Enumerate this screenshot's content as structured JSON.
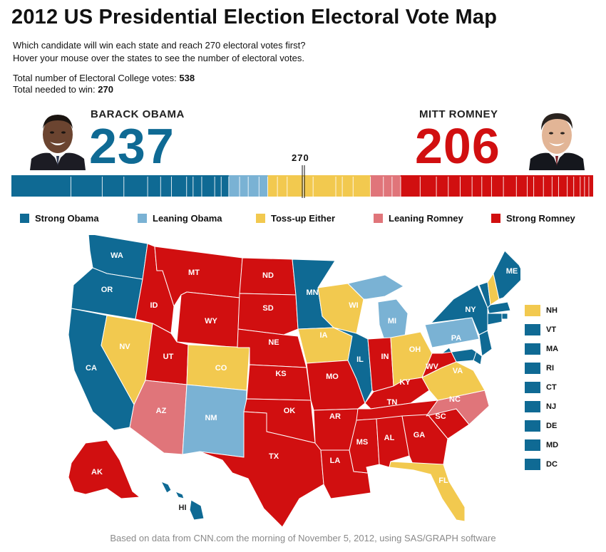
{
  "title": "2012 US Presidential Election Electoral Vote Map",
  "subtitle_lines": [
    "Which candidate will win each state and reach 270 electoral votes first?",
    "Hover your mouse over the states to see the number of electoral votes."
  ],
  "totals": {
    "total_label": "Total number of Electoral College votes: ",
    "total_value": "538",
    "needed_label": "Total needed to win: ",
    "needed_value": "270"
  },
  "candidates": {
    "obama": {
      "name": "BARACK OBAMA",
      "votes": "237",
      "color": "#0f6a94"
    },
    "romney": {
      "name": "MITT ROMNEY",
      "votes": "206",
      "color": "#d10f10"
    }
  },
  "threshold_label": "270",
  "colors": {
    "strong_obama": "#0f6a94",
    "leaning_obama": "#7ab2d4",
    "tossup": "#f2c94f",
    "leaning_romney": "#e0757a",
    "strong_romney": "#d10f10"
  },
  "bar_totals": {
    "strong_obama": 201,
    "leaning_obama": 36,
    "tossup": 95,
    "leaning_romney": 28,
    "strong_romney": 178
  },
  "legend": [
    {
      "label": "Strong Obama",
      "key": "strong_obama"
    },
    {
      "label": "Leaning Obama",
      "key": "leaning_obama"
    },
    {
      "label": "Toss-up Either",
      "key": "tossup"
    },
    {
      "label": "Leaning Romney",
      "key": "leaning_romney"
    },
    {
      "label": "Strong Romney",
      "key": "strong_romney"
    }
  ],
  "states": {
    "WA": "strong_obama",
    "OR": "strong_obama",
    "CA": "strong_obama",
    "NV": "tossup",
    "ID": "strong_romney",
    "MT": "strong_romney",
    "WY": "strong_romney",
    "UT": "strong_romney",
    "AZ": "leaning_romney",
    "CO": "tossup",
    "NM": "leaning_obama",
    "ND": "strong_romney",
    "SD": "strong_romney",
    "NE": "strong_romney",
    "KS": "strong_romney",
    "OK": "strong_romney",
    "TX": "strong_romney",
    "MN": "strong_obama",
    "IA": "tossup",
    "MO": "strong_romney",
    "AR": "strong_romney",
    "LA": "strong_romney",
    "WI": "tossup",
    "IL": "strong_obama",
    "MI": "leaning_obama",
    "IN": "strong_romney",
    "OH": "tossup",
    "KY": "strong_romney",
    "TN": "strong_romney",
    "MS": "strong_romney",
    "AL": "strong_romney",
    "GA": "strong_romney",
    "FL": "tossup",
    "SC": "strong_romney",
    "NC": "leaning_romney",
    "VA": "tossup",
    "WV": "strong_romney",
    "PA": "leaning_obama",
    "NY": "strong_obama",
    "ME": "strong_obama",
    "AK": "strong_romney",
    "HI": "strong_obama",
    "NH": "tossup",
    "VT": "strong_obama",
    "MA": "strong_obama",
    "RI": "strong_obama",
    "CT": "strong_obama",
    "NJ": "strong_obama",
    "DE": "strong_obama",
    "MD": "strong_obama",
    "DC": "strong_obama"
  },
  "small_states": [
    {
      "abbr": "NH",
      "key": "tossup"
    },
    {
      "abbr": "VT",
      "key": "strong_obama"
    },
    {
      "abbr": "MA",
      "key": "strong_obama"
    },
    {
      "abbr": "RI",
      "key": "strong_obama"
    },
    {
      "abbr": "CT",
      "key": "strong_obama"
    },
    {
      "abbr": "NJ",
      "key": "strong_obama"
    },
    {
      "abbr": "DE",
      "key": "strong_obama"
    },
    {
      "abbr": "MD",
      "key": "strong_obama"
    },
    {
      "abbr": "DC",
      "key": "strong_obama"
    }
  ],
  "footer": "Based on data from CNN.com the morning of November 5, 2012, using SAS/GRAPH software"
}
